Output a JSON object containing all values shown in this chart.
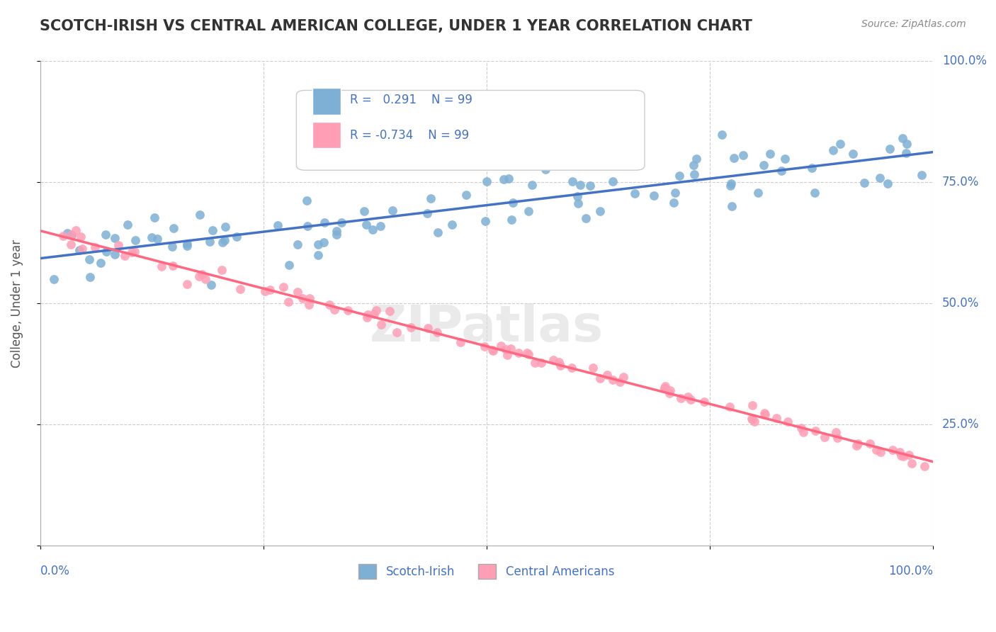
{
  "title": "SCOTCH-IRISH VS CENTRAL AMERICAN COLLEGE, UNDER 1 YEAR CORRELATION CHART",
  "source": "Source: ZipAtlas.com",
  "ylabel": "College, Under 1 year",
  "xmin": 0.0,
  "xmax": 1.0,
  "ymin": 0.0,
  "ymax": 1.0,
  "legend_labels": [
    "Scotch-Irish",
    "Central Americans"
  ],
  "r_scotch": "0.291",
  "r_central": "-0.734",
  "n_scotch": 99,
  "n_central": 99,
  "blue_color": "#7EB0D5",
  "pink_color": "#FF9EB5",
  "blue_line_color": "#4472C4",
  "pink_line_color": "#FF6680",
  "watermark": "ZIPatlas",
  "background_color": "#FFFFFF",
  "grid_color": "#CCCCCC",
  "axis_label_color": "#4472C4"
}
